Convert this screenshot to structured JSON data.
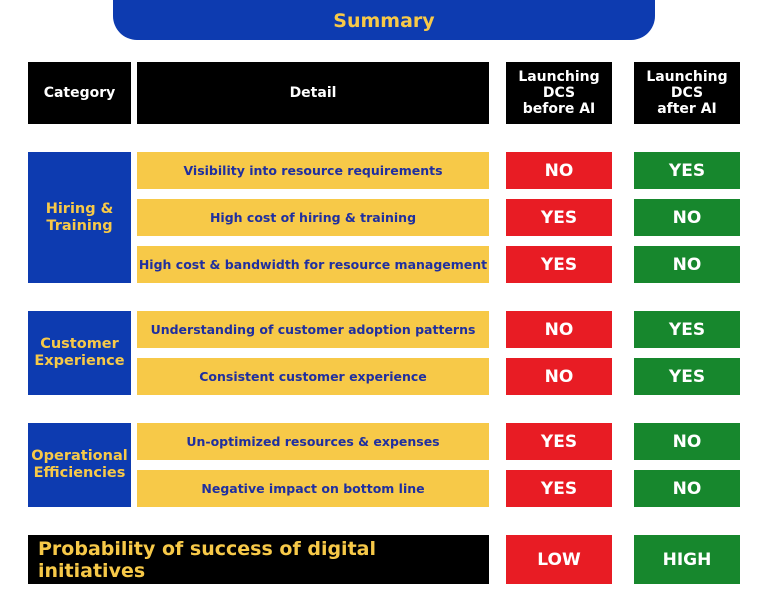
{
  "title": "Summary",
  "headers": {
    "category": "Category",
    "detail": "Detail",
    "before": "Launching\nDCS\nbefore AI",
    "after": "Launching\nDCS\nafter AI"
  },
  "groups": [
    {
      "category": "Hiring &\nTraining",
      "rows": [
        {
          "detail": "Visibility into resource requirements",
          "before": "NO",
          "after": "YES"
        },
        {
          "detail": "High cost of hiring & training",
          "before": "YES",
          "after": "NO"
        },
        {
          "detail": "High cost & bandwidth for resource management",
          "before": "YES",
          "after": "NO"
        }
      ]
    },
    {
      "category": "Customer\nExperience",
      "rows": [
        {
          "detail": "Understanding of customer adoption patterns",
          "before": "NO",
          "after": "YES"
        },
        {
          "detail": "Consistent customer experience",
          "before": "NO",
          "after": "YES"
        }
      ]
    },
    {
      "category": "Operational\nEfficiencies",
      "rows": [
        {
          "detail": "Un-optimized resources & expenses",
          "before": "YES",
          "after": "NO"
        },
        {
          "detail": "Negative impact on bottom line",
          "before": "YES",
          "after": "NO"
        }
      ]
    }
  ],
  "footer": {
    "label": "Probability of success of digital initiatives",
    "before": "LOW",
    "after": "HIGH"
  },
  "colors": {
    "blue": "#0d3bb0",
    "yellow": "#f7c948",
    "red": "#e81c24",
    "green": "#17872d",
    "black": "#000000"
  }
}
